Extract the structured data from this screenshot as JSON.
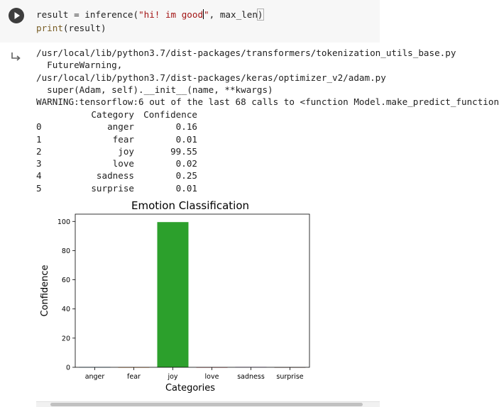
{
  "code": {
    "line1_prefix": "result = inference(",
    "line1_string": "\"hi! im good",
    "line1_string_end": "\"",
    "line1_suffix": ", max_len",
    "line1_close": ")",
    "line2_func": "print",
    "line2_args": "(result)"
  },
  "output": {
    "lines": [
      "/usr/local/lib/python3.7/dist-packages/transformers/tokenization_utils_base.py",
      "  FutureWarning,",
      "/usr/local/lib/python3.7/dist-packages/keras/optimizer_v2/adam.py",
      "  super(Adam, self).__init__(name, **kwargs)",
      "WARNING:tensorflow:6 out of the last 68 calls to <function Model.make_predict_function"
    ],
    "table": {
      "header_category": "Category",
      "header_confidence": "Confidence",
      "rows": [
        {
          "idx": "0",
          "category": "anger",
          "confidence": "0.16"
        },
        {
          "idx": "1",
          "category": "fear",
          "confidence": "0.01"
        },
        {
          "idx": "2",
          "category": "joy",
          "confidence": "99.55"
        },
        {
          "idx": "3",
          "category": "love",
          "confidence": "0.02"
        },
        {
          "idx": "4",
          "category": "sadness",
          "confidence": "0.25"
        },
        {
          "idx": "5",
          "category": "surprise",
          "confidence": "0.01"
        }
      ]
    }
  },
  "chart_data": {
    "type": "bar",
    "title": "Emotion Classification",
    "xlabel": "Categories",
    "ylabel": "Confidence",
    "categories": [
      "anger",
      "fear",
      "joy",
      "love",
      "sadness",
      "surprise"
    ],
    "values": [
      0.16,
      0.01,
      99.55,
      0.02,
      0.25,
      0.01
    ],
    "colors": [
      "#1f77b4",
      "#ff7f0e",
      "#2ca02c",
      "#d62728",
      "#9467bd",
      "#8c564b"
    ],
    "yticks": [
      "0",
      "20",
      "40",
      "60",
      "80",
      "100"
    ],
    "ylim": [
      0,
      105
    ],
    "grid": false
  }
}
